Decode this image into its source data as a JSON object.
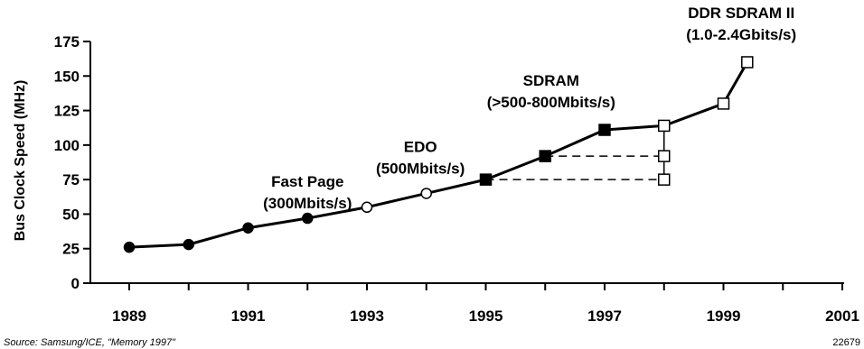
{
  "chart_data": {
    "type": "line",
    "ylabel": "Bus Clock Speed (MHz)",
    "xlabel": "",
    "xlim": [
      1989,
      2001
    ],
    "ylim": [
      0,
      175
    ],
    "x_ticks": [
      1989,
      1991,
      1993,
      1995,
      1997,
      1999,
      2001
    ],
    "y_ticks": [
      0,
      25,
      50,
      75,
      100,
      125,
      150,
      175
    ],
    "grid": false,
    "legend": "none",
    "series": [
      {
        "points": [
          {
            "x": 1989,
            "y": 26,
            "marker": "filled-circle"
          },
          {
            "x": 1990,
            "y": 28,
            "marker": "filled-circle"
          },
          {
            "x": 1991,
            "y": 40,
            "marker": "filled-circle"
          },
          {
            "x": 1992,
            "y": 47,
            "marker": "filled-circle"
          },
          {
            "x": 1993,
            "y": 55,
            "marker": "open-circle"
          },
          {
            "x": 1994,
            "y": 65,
            "marker": "open-circle"
          },
          {
            "x": 1995,
            "y": 75,
            "marker": "filled-square"
          },
          {
            "x": 1996,
            "y": 92,
            "marker": "filled-square"
          },
          {
            "x": 1997,
            "y": 111,
            "marker": "filled-square"
          },
          {
            "x": 1998,
            "y": 114,
            "marker": "open-square"
          },
          {
            "x": 1999,
            "y": 130,
            "marker": "open-square"
          },
          {
            "x": 1999.4,
            "y": 160,
            "marker": "open-square"
          }
        ]
      }
    ],
    "extra_points": [
      {
        "x": 1998,
        "y": 92,
        "marker": "open-square"
      },
      {
        "x": 1998,
        "y": 75,
        "marker": "open-square"
      }
    ],
    "dashed_lines": [
      {
        "x0": 1995,
        "y0": 75,
        "x1": 1998,
        "y1": 75
      },
      {
        "x0": 1996,
        "y0": 92,
        "x1": 1998,
        "y1": 92
      }
    ],
    "vertical_bracket": {
      "x": 1998,
      "y0": 75,
      "y1": 114
    },
    "annotations": [
      {
        "lines": [
          "Fast Page",
          "(300Mbits/s)"
        ],
        "x": 1992,
        "y": 70
      },
      {
        "lines": [
          "EDO",
          "(500Mbits/s)"
        ],
        "x": 1993.9,
        "y": 95
      },
      {
        "lines": [
          "SDRAM",
          "(>500-800Mbits/s)"
        ],
        "x": 1996.1,
        "y": 143
      },
      {
        "lines": [
          "DDR SDRAM II",
          "(1.0-2.4Gbits/s)"
        ],
        "x": 1999.3,
        "y": 192
      }
    ]
  },
  "footer": {
    "source": "Source: Samsung/ICE, \"Memory 1997\"",
    "figure_id": "22679"
  }
}
